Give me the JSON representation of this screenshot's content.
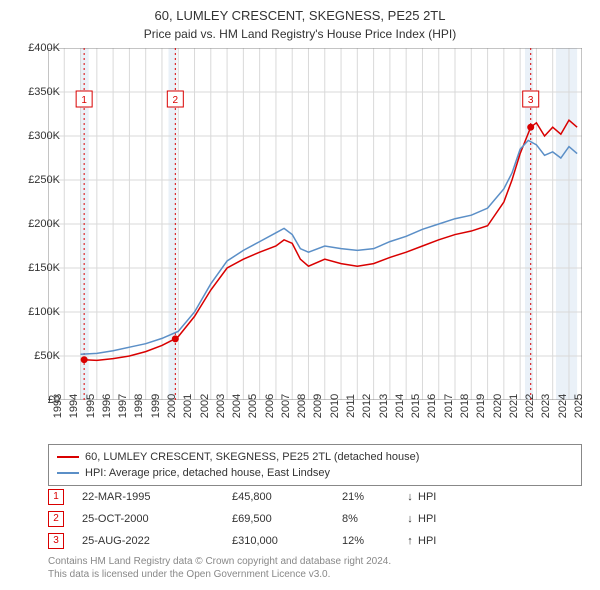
{
  "title": "60, LUMLEY CRESCENT, SKEGNESS, PE25 2TL",
  "subtitle": "Price paid vs. HM Land Registry's House Price Index (HPI)",
  "chart": {
    "type": "line",
    "background_color": "#ffffff",
    "plot_border_color": "#888888",
    "grid_color": "#d9d9d9",
    "recession_band_color": "#eaf1f8",
    "recession_bands": [
      [
        1995.0,
        1995.5
      ],
      [
        2000.4,
        2000.9
      ],
      [
        2022.3,
        2022.8
      ],
      [
        2024.2,
        2025.5
      ]
    ],
    "x": {
      "min": 1993,
      "max": 2025.8,
      "ticks": [
        1993,
        1994,
        1995,
        1996,
        1997,
        1998,
        1999,
        2000,
        2001,
        2002,
        2003,
        2004,
        2005,
        2006,
        2007,
        2008,
        2009,
        2010,
        2011,
        2012,
        2013,
        2014,
        2015,
        2016,
        2017,
        2018,
        2019,
        2020,
        2021,
        2022,
        2023,
        2024,
        2025
      ],
      "label_fontsize": 11
    },
    "y": {
      "min": 0,
      "max": 400000,
      "ticks": [
        0,
        50000,
        100000,
        150000,
        200000,
        250000,
        300000,
        350000,
        400000
      ],
      "tick_labels": [
        "£0",
        "£50K",
        "£100K",
        "£150K",
        "£200K",
        "£250K",
        "£300K",
        "£350K",
        "£400K"
      ],
      "label_fontsize": 11
    },
    "series": [
      {
        "name": "property",
        "legend": "60, LUMLEY CRESCENT, SKEGNESS, PE25 2TL (detached house)",
        "color": "#d90000",
        "line_width": 1.5,
        "data": [
          [
            1995.2,
            45800
          ],
          [
            1996,
            45000
          ],
          [
            1997,
            47000
          ],
          [
            1998,
            50000
          ],
          [
            1999,
            55000
          ],
          [
            2000,
            62000
          ],
          [
            2000.8,
            69500
          ],
          [
            2001,
            72000
          ],
          [
            2002,
            95000
          ],
          [
            2003,
            125000
          ],
          [
            2004,
            150000
          ],
          [
            2005,
            160000
          ],
          [
            2006,
            168000
          ],
          [
            2007,
            175000
          ],
          [
            2007.5,
            182000
          ],
          [
            2008,
            178000
          ],
          [
            2008.5,
            160000
          ],
          [
            2009,
            152000
          ],
          [
            2010,
            160000
          ],
          [
            2011,
            155000
          ],
          [
            2012,
            152000
          ],
          [
            2013,
            155000
          ],
          [
            2014,
            162000
          ],
          [
            2015,
            168000
          ],
          [
            2016,
            175000
          ],
          [
            2017,
            182000
          ],
          [
            2018,
            188000
          ],
          [
            2019,
            192000
          ],
          [
            2020,
            198000
          ],
          [
            2021,
            225000
          ],
          [
            2021.5,
            250000
          ],
          [
            2022,
            280000
          ],
          [
            2022.65,
            310000
          ],
          [
            2023,
            315000
          ],
          [
            2023.5,
            300000
          ],
          [
            2024,
            310000
          ],
          [
            2024.5,
            302000
          ],
          [
            2025,
            318000
          ],
          [
            2025.5,
            310000
          ]
        ]
      },
      {
        "name": "hpi",
        "legend": "HPI: Average price, detached house, East Lindsey",
        "color": "#5b8fc7",
        "line_width": 1.5,
        "data": [
          [
            1995,
            52000
          ],
          [
            1996,
            53000
          ],
          [
            1997,
            56000
          ],
          [
            1998,
            60000
          ],
          [
            1999,
            64000
          ],
          [
            2000,
            70000
          ],
          [
            2001,
            78000
          ],
          [
            2002,
            100000
          ],
          [
            2003,
            132000
          ],
          [
            2004,
            158000
          ],
          [
            2005,
            170000
          ],
          [
            2006,
            180000
          ],
          [
            2007,
            190000
          ],
          [
            2007.5,
            195000
          ],
          [
            2008,
            188000
          ],
          [
            2008.5,
            172000
          ],
          [
            2009,
            168000
          ],
          [
            2010,
            175000
          ],
          [
            2011,
            172000
          ],
          [
            2012,
            170000
          ],
          [
            2013,
            172000
          ],
          [
            2014,
            180000
          ],
          [
            2015,
            186000
          ],
          [
            2016,
            194000
          ],
          [
            2017,
            200000
          ],
          [
            2018,
            206000
          ],
          [
            2019,
            210000
          ],
          [
            2020,
            218000
          ],
          [
            2021,
            240000
          ],
          [
            2021.5,
            258000
          ],
          [
            2022,
            285000
          ],
          [
            2022.5,
            295000
          ],
          [
            2023,
            290000
          ],
          [
            2023.5,
            278000
          ],
          [
            2024,
            282000
          ],
          [
            2024.5,
            275000
          ],
          [
            2025,
            288000
          ],
          [
            2025.5,
            280000
          ]
        ]
      }
    ],
    "sale_markers": [
      {
        "n": "1",
        "x": 1995.22,
        "y": 45800,
        "label_y": 350000
      },
      {
        "n": "2",
        "x": 2000.82,
        "y": 69500,
        "label_y": 350000
      },
      {
        "n": "3",
        "x": 2022.65,
        "y": 310000,
        "label_y": 350000
      }
    ],
    "marker_point_color": "#d90000",
    "marker_line_color": "#d90000",
    "marker_line_dash": "2,3",
    "marker_box_border": "#d90000"
  },
  "legend": {
    "rows": [
      {
        "color": "#d90000",
        "label": "60, LUMLEY CRESCENT, SKEGNESS, PE25 2TL (detached house)"
      },
      {
        "color": "#5b8fc7",
        "label": "HPI: Average price, detached house, East Lindsey"
      }
    ]
  },
  "sales_table": {
    "rows": [
      {
        "n": "1",
        "date": "22-MAR-1995",
        "price": "£45,800",
        "pct": "21%",
        "dir": "down",
        "hpi": "HPI"
      },
      {
        "n": "2",
        "date": "25-OCT-2000",
        "price": "£69,500",
        "pct": "8%",
        "dir": "down",
        "hpi": "HPI"
      },
      {
        "n": "3",
        "date": "25-AUG-2022",
        "price": "£310,000",
        "pct": "12%",
        "dir": "up",
        "hpi": "HPI"
      }
    ],
    "arrow_up": "↑",
    "arrow_down": "↓"
  },
  "footer": {
    "line1": "Contains HM Land Registry data © Crown copyright and database right 2024.",
    "line2": "This data is licensed under the Open Government Licence v3.0."
  }
}
